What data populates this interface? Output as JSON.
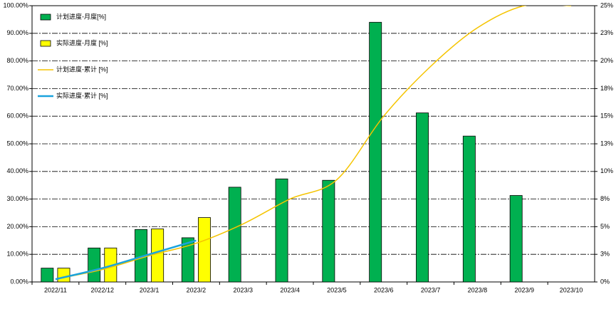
{
  "chart_data": {
    "type": "combo",
    "categories": [
      "2022/11",
      "2022/12",
      "2023/1",
      "2023/2",
      "2023/3",
      "2023/4",
      "2023/5",
      "2023/6",
      "2023/7",
      "2023/8",
      "2023/9",
      "2023/10"
    ],
    "series": [
      {
        "name": "计划进度-月度[%]",
        "type": "bar",
        "color": "#00b050",
        "values": [
          5,
          12.3,
          19,
          16,
          34.3,
          37.3,
          36.8,
          94,
          61.2,
          52.8,
          31.3,
          null
        ]
      },
      {
        "name": "实际进度-月度 [%]",
        "type": "bar",
        "color": "#ffff00",
        "values": [
          5,
          12.3,
          19.2,
          23.3,
          null,
          null,
          null,
          null,
          null,
          null,
          null,
          null
        ]
      },
      {
        "name": "计划进度-累计 [%]",
        "type": "line",
        "color": "#f5c400",
        "values": [
          1,
          4.5,
          9.5,
          14,
          21,
          30,
          37,
          60,
          78,
          92,
          100,
          100
        ]
      },
      {
        "name": "实际进度-累计 [%]",
        "type": "line",
        "color": "#1aa3dd",
        "values": [
          1,
          5,
          10,
          15,
          null,
          null,
          null,
          null,
          null,
          null,
          null,
          null
        ]
      }
    ],
    "ylim": [
      0,
      100
    ],
    "yticks": [
      {
        "value": 0,
        "label": "0.00%"
      },
      {
        "value": 10,
        "label": "10.00%"
      },
      {
        "value": 20,
        "label": "20.00%"
      },
      {
        "value": 30,
        "label": "30.00%"
      },
      {
        "value": 40,
        "label": "40.00%"
      },
      {
        "value": 50,
        "label": "50.00%"
      },
      {
        "value": 60,
        "label": "60.00%"
      },
      {
        "value": 70,
        "label": "70.00%"
      },
      {
        "value": 80,
        "label": "80.00%"
      },
      {
        "value": 90,
        "label": "90.00%"
      },
      {
        "value": 100,
        "label": "100.00%"
      }
    ],
    "y2lim": [
      0,
      25
    ],
    "y2ticks": [
      {
        "value": 0,
        "label": "0%"
      },
      {
        "value": 2.5,
        "label": "3%"
      },
      {
        "value": 5,
        "label": "5%"
      },
      {
        "value": 7.5,
        "label": "8%"
      },
      {
        "value": 10,
        "label": "10%"
      },
      {
        "value": 12.5,
        "label": "13%"
      },
      {
        "value": 15,
        "label": "15%"
      },
      {
        "value": 17.5,
        "label": "18%"
      },
      {
        "value": 20,
        "label": "20%"
      },
      {
        "value": 22.5,
        "label": "23%"
      },
      {
        "value": 25,
        "label": "25%"
      }
    ],
    "grid": true,
    "legend": "top-left"
  }
}
